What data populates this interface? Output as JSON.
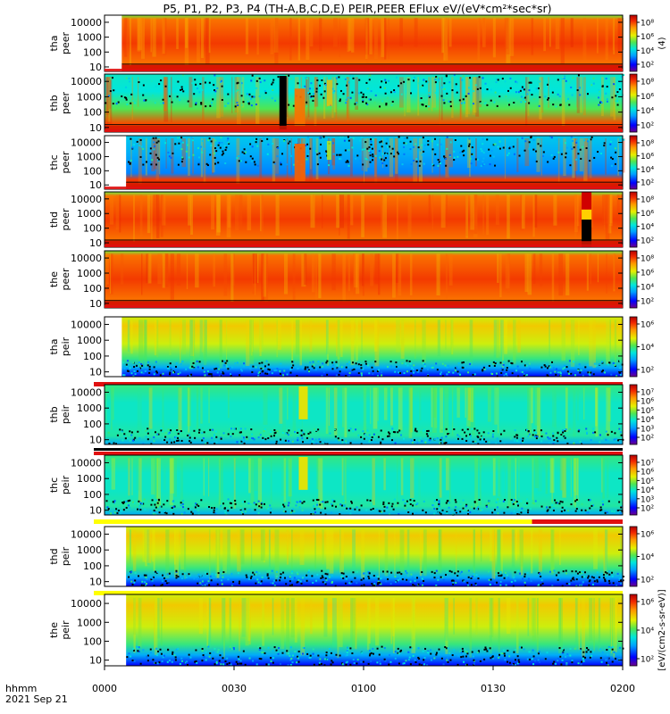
{
  "title": "P5, P1, P2, P3, P4 (TH-A,B,C,D,E) PEIR,PEER EFlux eV/(eV*cm²*sec*sr)",
  "colors": {
    "red_band": "#e01010",
    "yellow_band": "#ffff00",
    "black_band": "#000000"
  },
  "chart_data": {
    "type": "heatmap",
    "xaxis": {
      "label_line1": "hhmm",
      "label_line2": "2021 Sep 21",
      "ticks": [
        "0000",
        "0030",
        "0100",
        "0130",
        "0200"
      ],
      "range_minutes": [
        0,
        120
      ]
    },
    "yaxis": {
      "scale": "log",
      "range_eV": [
        5,
        30000
      ]
    },
    "panels": [
      {
        "name": "tha peer",
        "ticks": [
          "10000",
          "1000",
          "100",
          "10"
        ],
        "cbar_ticks": [
          "10⁸",
          "10⁶",
          "10⁴",
          "10²"
        ],
        "cbar_label": "(4)",
        "kind": "elec",
        "spec": "a",
        "data_start_min": 4,
        "bottom_band": "red"
      },
      {
        "name": "thb peer",
        "ticks": [
          "10000",
          "1000",
          "100",
          "10"
        ],
        "cbar_ticks": [
          "10⁸",
          "10⁶",
          "10⁴",
          "10²"
        ],
        "cbar_label": "",
        "kind": "elec",
        "spec": "b",
        "data_start_min": 0,
        "bottom_band": "red"
      },
      {
        "name": "thc peer",
        "ticks": [
          "10000",
          "1000",
          "100",
          "10"
        ],
        "cbar_ticks": [
          "10⁸",
          "10⁶",
          "10⁴",
          "10²"
        ],
        "cbar_label": "",
        "kind": "elec",
        "spec": "c",
        "data_start_min": 5,
        "bottom_band": "red"
      },
      {
        "name": "thd peer",
        "ticks": [
          "10000",
          "1000",
          "100",
          "10"
        ],
        "cbar_ticks": [
          "10⁸",
          "10⁶",
          "10⁴",
          "10²"
        ],
        "cbar_label": "",
        "kind": "elec",
        "spec": "d",
        "data_start_min": 0,
        "bottom_band": "red"
      },
      {
        "name": "the peer",
        "ticks": [
          "10000",
          "1000",
          "100",
          "10"
        ],
        "cbar_ticks": [
          "10⁸",
          "10⁶",
          "10⁴",
          "10²"
        ],
        "cbar_label": "",
        "kind": "elec",
        "spec": "e",
        "data_start_min": 0,
        "bottom_band": "red"
      },
      {
        "name": "tha peir",
        "ticks": [
          "10000",
          "1000",
          "100",
          "10"
        ],
        "cbar_ticks": [
          "10⁶",
          "10⁴",
          "10²"
        ],
        "cbar_label": "",
        "kind": "ion",
        "spec": "a",
        "data_start_min": 4,
        "bottom_band": "red"
      },
      {
        "name": "thb peir",
        "ticks": [
          "10000",
          "1000",
          "100",
          "10"
        ],
        "cbar_ticks": [
          "10⁷",
          "10⁶",
          "10⁵",
          "10⁴",
          "10³",
          "10²"
        ],
        "cbar_label": "",
        "kind": "ion",
        "spec": "b",
        "data_start_min": 0,
        "bottom_band": "blackred"
      },
      {
        "name": "thc peir",
        "ticks": [
          "10000",
          "1000",
          "100",
          "10"
        ],
        "cbar_ticks": [
          "10⁷",
          "10⁶",
          "10⁵",
          "10⁴",
          "10³",
          "10²"
        ],
        "cbar_label": "",
        "kind": "ion",
        "spec": "c",
        "data_start_min": 0,
        "bottom_band": "yellowred"
      },
      {
        "name": "thd peir",
        "ticks": [
          "10000",
          "1000",
          "100",
          "10"
        ],
        "cbar_ticks": [
          "10⁶",
          "10⁴",
          "10²"
        ],
        "cbar_label": "",
        "kind": "ion",
        "spec": "d",
        "data_start_min": 5,
        "bottom_band": "yellow"
      },
      {
        "name": "the peir",
        "ticks": [
          "10000",
          "1000",
          "100",
          "10"
        ],
        "cbar_ticks": [
          "10⁶",
          "10⁴",
          "10²"
        ],
        "cbar_label": "[eV/(cm2-s-sr-eV)]",
        "kind": "ion",
        "spec": "e",
        "data_start_min": 5,
        "bottom_band": "none"
      }
    ]
  }
}
